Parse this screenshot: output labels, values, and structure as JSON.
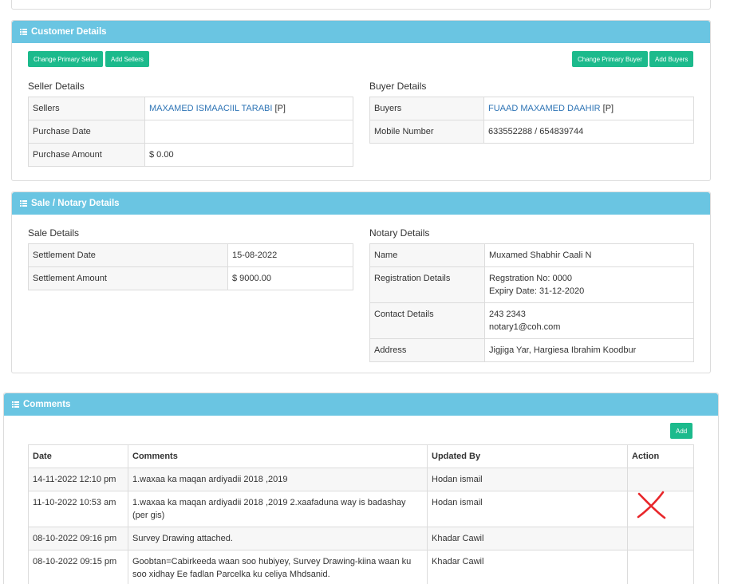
{
  "customer_panel": {
    "title": "Customer Details",
    "buttons": {
      "change_primary_seller": "Change Primary Seller",
      "add_sellers": "Add Sellers",
      "change_primary_buyer": "Change Primary Buyer",
      "add_buyers": "Add Buyers"
    },
    "seller": {
      "title": "Seller Details",
      "rows": [
        {
          "label": "Sellers",
          "value": "MAXAMED ISMAACIIL TARABI",
          "suffix": " [P]"
        },
        {
          "label": "Purchase Date",
          "value": ""
        },
        {
          "label": "Purchase Amount",
          "value": "$ 0.00"
        }
      ]
    },
    "buyer": {
      "title": "Buyer Details",
      "rows": [
        {
          "label": "Buyers",
          "value": "FUAAD MAXAMED DAAHIR",
          "suffix": " [P]"
        },
        {
          "label": "Mobile Number",
          "value": "633552288 / 654839744"
        }
      ]
    }
  },
  "sale_panel": {
    "title": "Sale / Notary Details",
    "sale": {
      "title": "Sale Details",
      "rows": [
        {
          "label": "Settlement Date",
          "value": "15-08-2022"
        },
        {
          "label": "Settlement Amount",
          "value": "$ 9000.00"
        }
      ]
    },
    "notary": {
      "title": "Notary Details",
      "rows": [
        {
          "label": "Name",
          "line1": "Muxamed Shabhir Caali N",
          "line2": ""
        },
        {
          "label": "Registration Details",
          "line1": "Regstration No: 0000",
          "line2": "Expiry Date: 31-12-2020"
        },
        {
          "label": "Contact Details",
          "line1": "243 2343",
          "line2": "notary1@coh.com"
        },
        {
          "label": "Address",
          "line1": "Jigjiga Yar, Hargiesa Ibrahim Koodbur",
          "line2": ""
        }
      ]
    }
  },
  "comments_panel": {
    "title": "Comments",
    "add_label": "Add",
    "headers": {
      "date": "Date",
      "comments": "Comments",
      "updated_by": "Updated By",
      "action": "Action"
    },
    "rows": [
      {
        "date": "14-11-2022 12:10 pm",
        "comment": "1.waxaa ka maqan ardiyadii 2018 ,2019",
        "updated_by": "Hodan ismail"
      },
      {
        "date": "11-10-2022 10:53 am",
        "comment": "1.waxaa ka maqan ardiyadii 2018 ,2019 2.xaafaduna way is badashay (per gis)",
        "updated_by": "Hodan ismail"
      },
      {
        "date": "08-10-2022 09:16 pm",
        "comment": "Survey Drawing attached.",
        "updated_by": "Khadar Cawil"
      },
      {
        "date": "08-10-2022 09:15 pm",
        "comment": "Goobtan=Cabirkeeda waan soo hubiyey, Survey Drawing-kiina waan ku soo xidhay Ee fadlan Parcelka ku celiya Mhdsanid.",
        "updated_by": "Khadar Cawil"
      }
    ]
  },
  "colors": {
    "panel_header": "#6ac5e2",
    "button": "#1cba8c",
    "link": "#2e74b5",
    "annotation": "#e8262a"
  },
  "icons": {
    "panel_header": "list-icon",
    "annotation": "red-x-annotation"
  }
}
